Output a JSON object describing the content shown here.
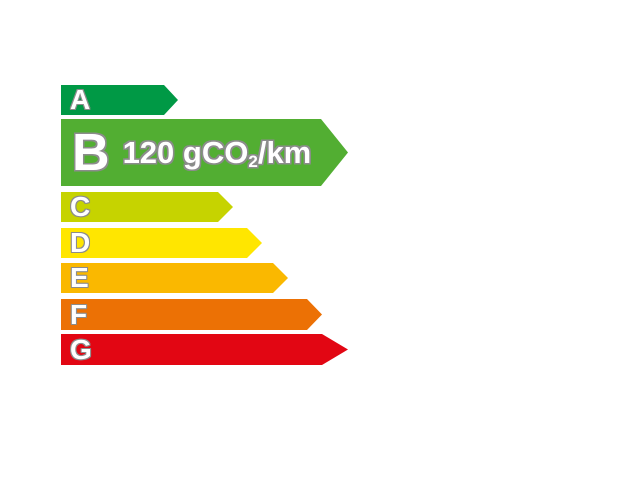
{
  "rating": {
    "bars": [
      {
        "label": "A",
        "color": "#009945"
      },
      {
        "label": "B",
        "color": "#52AE32"
      },
      {
        "label": "C",
        "color": "#C6D300"
      },
      {
        "label": "D",
        "color": "#FFE600"
      },
      {
        "label": "E",
        "color": "#FAB800"
      },
      {
        "label": "F",
        "color": "#EC7105"
      },
      {
        "label": "G",
        "color": "#E20613"
      }
    ],
    "selected_class": "B",
    "value_prefix": "120 gCO",
    "value_sub": "2",
    "value_suffix": "/km",
    "letter_color": "#FFFFFF",
    "letter_outline_color": "#8C8C8C",
    "background_color": "#FFFFFF"
  },
  "chart_data": {
    "type": "bar",
    "orientation": "horizontal",
    "title": "",
    "categories": [
      "A",
      "B",
      "C",
      "D",
      "E",
      "F",
      "G"
    ],
    "values": [
      117,
      287,
      172,
      201,
      227,
      261,
      287
    ],
    "colors": [
      "#009945",
      "#52AE32",
      "#C6D300",
      "#FFE600",
      "#FAB800",
      "#EC7105",
      "#E20613"
    ],
    "highlighted_category": "B",
    "highlighted_value_label": "120 gCO2/km",
    "legend": "off",
    "axes": "none",
    "grid": "off"
  }
}
